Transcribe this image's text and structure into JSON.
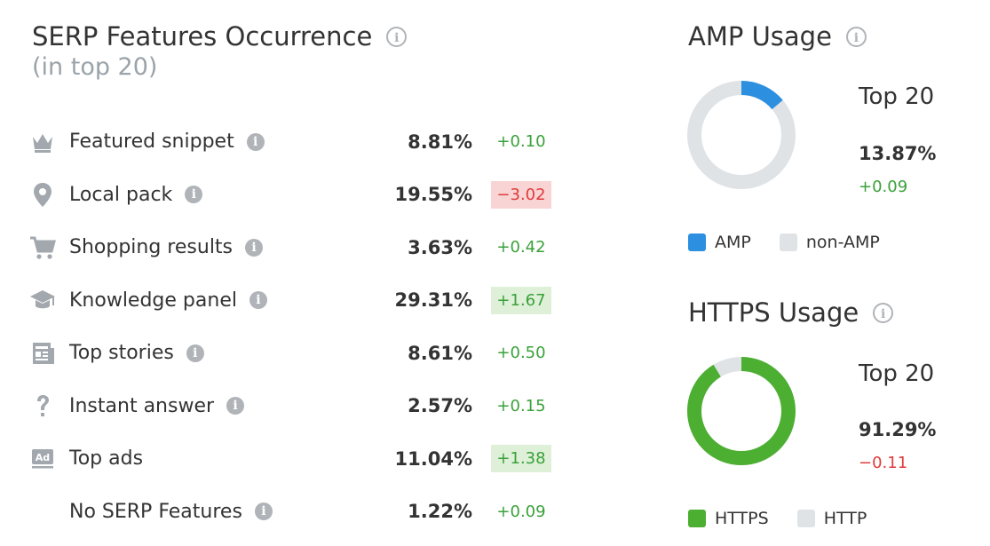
{
  "serp": {
    "title": "SERP Features Occurrence",
    "subtitle": "(in top 20)",
    "info_glyph": "i",
    "rows": [
      {
        "label": "Featured snippet",
        "icon": "crown-icon",
        "pct": "8.81%",
        "delta": "+0.10",
        "trend": "pos",
        "highlight": false
      },
      {
        "label": "Local pack",
        "icon": "map-pin-icon",
        "pct": "19.55%",
        "delta": "−3.02",
        "trend": "neg",
        "highlight": true
      },
      {
        "label": "Shopping results",
        "icon": "shopping-cart-icon",
        "pct": "3.63%",
        "delta": "+0.42",
        "trend": "pos",
        "highlight": false
      },
      {
        "label": "Knowledge panel",
        "icon": "graduation-cap-icon",
        "pct": "29.31%",
        "delta": "+1.67",
        "trend": "pos",
        "highlight": true
      },
      {
        "label": "Top stories",
        "icon": "newspaper-icon",
        "pct": "8.61%",
        "delta": "+0.50",
        "trend": "pos",
        "highlight": false
      },
      {
        "label": "Instant answer",
        "icon": "question-mark-icon",
        "pct": "2.57%",
        "delta": "+0.15",
        "trend": "pos",
        "highlight": false
      },
      {
        "label": "Top ads",
        "icon": "ad-icon",
        "pct": "11.04%",
        "delta": "+1.38",
        "trend": "pos",
        "highlight": true
      },
      {
        "label": "No SERP Features",
        "icon": "",
        "pct": "1.22%",
        "delta": "+0.09",
        "trend": "pos",
        "highlight": false
      }
    ]
  },
  "amp": {
    "title": "AMP Usage",
    "top_label": "Top 20",
    "value": "13.87%",
    "value_fraction": 0.1387,
    "delta": "+0.09",
    "delta_trend": "pos",
    "legend": [
      {
        "label": "AMP",
        "color": "#2d8fe0"
      },
      {
        "label": "non-AMP",
        "color": "#dfe3e6"
      }
    ]
  },
  "https": {
    "title": "HTTPS Usage",
    "top_label": "Top 20",
    "value": "91.29%",
    "value_fraction": 0.9129,
    "delta": "−0.11",
    "delta_trend": "neg",
    "legend": [
      {
        "label": "HTTPS",
        "color": "#4caf32"
      },
      {
        "label": "HTTP",
        "color": "#dfe3e6"
      }
    ]
  },
  "colors": {
    "positive": "#3aa13a",
    "negative": "#e03b3b",
    "positive_bg": "#dff0d8",
    "negative_bg": "#f9d4d4",
    "icon_gray": "#a2a8ae"
  }
}
